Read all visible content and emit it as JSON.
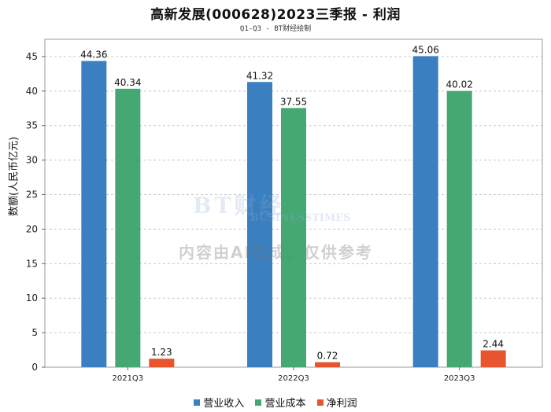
{
  "chart_data": {
    "type": "bar",
    "title": "高新发展(000628)2023三季报 - 利润",
    "subtitle": "Q1-Q3 - BT财经绘制",
    "ylabel": "数额(人民币亿元)",
    "xlabel": "",
    "categories": [
      "2021Q3",
      "2022Q3",
      "2023Q3"
    ],
    "ylim": [
      0,
      47.5
    ],
    "yticks": [
      0,
      5,
      10,
      15,
      20,
      25,
      30,
      35,
      40,
      45
    ],
    "grid": true,
    "legend_position": "bottom",
    "series": [
      {
        "name": "营业收入",
        "color": "#3a7fbf",
        "values": [
          44.36,
          41.32,
          45.06
        ],
        "labels": [
          "44.36",
          "41.32",
          "45.06"
        ]
      },
      {
        "name": "营业成本",
        "color": "#45a873",
        "values": [
          40.34,
          37.55,
          40.02
        ],
        "labels": [
          "40.34",
          "37.55",
          "40.02"
        ]
      },
      {
        "name": "净利润",
        "color": "#e8542e",
        "values": [
          1.23,
          0.72,
          2.44
        ],
        "labels": [
          "1.23",
          "0.72",
          "2.44"
        ]
      }
    ]
  },
  "watermark": {
    "logo": "BT财经",
    "logo_sub": "BUSINESSTIMES",
    "text": "内容由AI生成，仅供参考"
  }
}
